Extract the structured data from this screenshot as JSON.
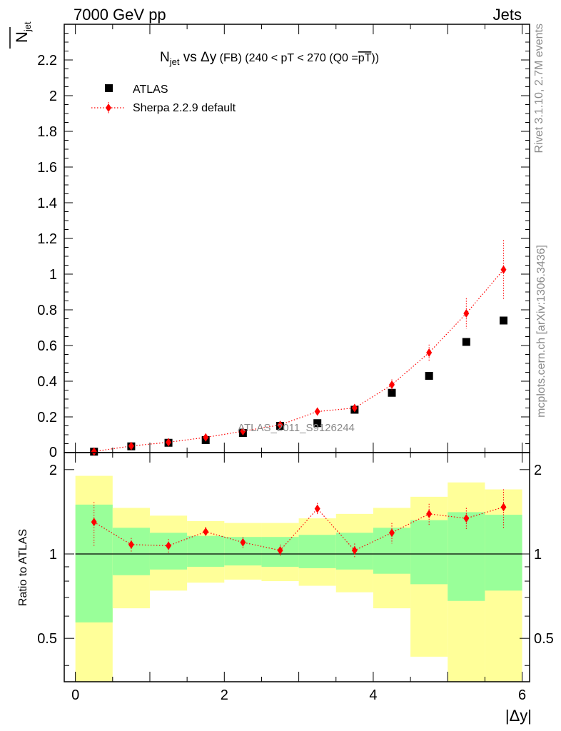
{
  "header": {
    "left": "7000 GeV pp",
    "right": "Jets"
  },
  "side_text": {
    "rivet": "Rivet 3.1.10,  2.7M events",
    "mcplots": "mcplots.cern.ch [arXiv:1306.3436]"
  },
  "chart_data": [
    {
      "type": "scatter",
      "title_parts": {
        "n": "N",
        "jet_sub": "jet",
        "vs": " vs ",
        "delta_y": "Δy",
        "fb": " (FB) ",
        "range": "(240 < pT < 270 (Q0 =",
        "pt_over": "pT",
        "close": "))"
      },
      "ylabel_main": "N",
      "ylabel_sub": "jet",
      "watermark": "ATLAS_2011_S9126244",
      "xlim": [
        -0.15,
        6.1
      ],
      "ylim": [
        0,
        2.4
      ],
      "x_ticks": [
        0,
        2,
        4,
        6
      ],
      "y_ticks": [
        0.2,
        0.4,
        0.6,
        0.8,
        1,
        1.2,
        1.4,
        1.6,
        1.8,
        2,
        2.2
      ],
      "y_tick_labels": [
        "0.2",
        "0.4",
        "0.6",
        "0.8",
        "1",
        "1.2",
        "1.4",
        "1.6",
        "1.8",
        "2",
        "2.2"
      ],
      "y_zero_label": "0",
      "x": [
        0.25,
        0.75,
        1.25,
        1.75,
        2.25,
        2.75,
        3.25,
        3.75,
        4.25,
        4.75,
        5.25,
        5.75
      ],
      "series": [
        {
          "name": "ATLAS",
          "color": "#000000",
          "marker": "square",
          "values": [
            0.005,
            0.035,
            0.055,
            0.07,
            0.11,
            0.15,
            0.165,
            0.24,
            0.335,
            0.43,
            0.62,
            0.74
          ]
        },
        {
          "name": "Sherpa 2.2.9 default",
          "color": "#ff0000",
          "marker": "diamond",
          "line": "dotted",
          "values": [
            0.006,
            0.037,
            0.058,
            0.085,
            0.12,
            0.155,
            0.23,
            0.25,
            0.38,
            0.56,
            0.78,
            1.025
          ],
          "err": [
            0.003,
            0.006,
            0.007,
            0.01,
            0.012,
            0.015,
            0.015,
            0.02,
            0.03,
            0.045,
            0.085,
            0.165
          ]
        }
      ],
      "legend_position": "top-left"
    },
    {
      "type": "scatter",
      "ylabel": "Ratio to ATLAS",
      "xlabel": "|Δy|",
      "xlim": [
        -0.15,
        6.1
      ],
      "ylim": [
        0.35,
        2.3
      ],
      "log_y": true,
      "x_ticks": [
        0,
        2,
        4,
        6
      ],
      "x_tick_labels": [
        "0",
        "2",
        "4",
        "6"
      ],
      "y_ticks": [
        0.5,
        1,
        2
      ],
      "y_tick_labels": [
        "0.5",
        "1",
        "2"
      ],
      "bins": [
        [
          0,
          0.5
        ],
        [
          0.5,
          1
        ],
        [
          1,
          1.5
        ],
        [
          1.5,
          2
        ],
        [
          2,
          2.5
        ],
        [
          2.5,
          3
        ],
        [
          3,
          3.5
        ],
        [
          3.5,
          4
        ],
        [
          4,
          4.5
        ],
        [
          4.5,
          5
        ],
        [
          5,
          5.5
        ],
        [
          5.5,
          6
        ]
      ],
      "band_yellow": [
        [
          0.35,
          1.9
        ],
        [
          0.64,
          1.46
        ],
        [
          0.74,
          1.37
        ],
        [
          0.79,
          1.31
        ],
        [
          0.81,
          1.29
        ],
        [
          0.8,
          1.29
        ],
        [
          0.77,
          1.34
        ],
        [
          0.73,
          1.39
        ],
        [
          0.64,
          1.46
        ],
        [
          0.43,
          1.6
        ],
        [
          0.35,
          1.8
        ],
        [
          0.35,
          1.7
        ]
      ],
      "band_green": [
        [
          0.57,
          1.5
        ],
        [
          0.84,
          1.24
        ],
        [
          0.88,
          1.19
        ],
        [
          0.9,
          1.16
        ],
        [
          0.91,
          1.15
        ],
        [
          0.9,
          1.15
        ],
        [
          0.89,
          1.17
        ],
        [
          0.88,
          1.19
        ],
        [
          0.85,
          1.24
        ],
        [
          0.78,
          1.32
        ],
        [
          0.68,
          1.41
        ],
        [
          0.74,
          1.38
        ]
      ],
      "series": [
        {
          "name": "Sherpa 2.2.9 default",
          "color": "#ff0000",
          "values": [
            1.3,
            1.08,
            1.07,
            1.2,
            1.1,
            1.03,
            1.45,
            1.03,
            1.19,
            1.39,
            1.34,
            1.47
          ],
          "err": [
            0.23,
            0.06,
            0.06,
            0.05,
            0.05,
            0.05,
            0.07,
            0.06,
            0.1,
            0.12,
            0.12,
            0.23
          ]
        }
      ],
      "reference_line": 1
    }
  ]
}
